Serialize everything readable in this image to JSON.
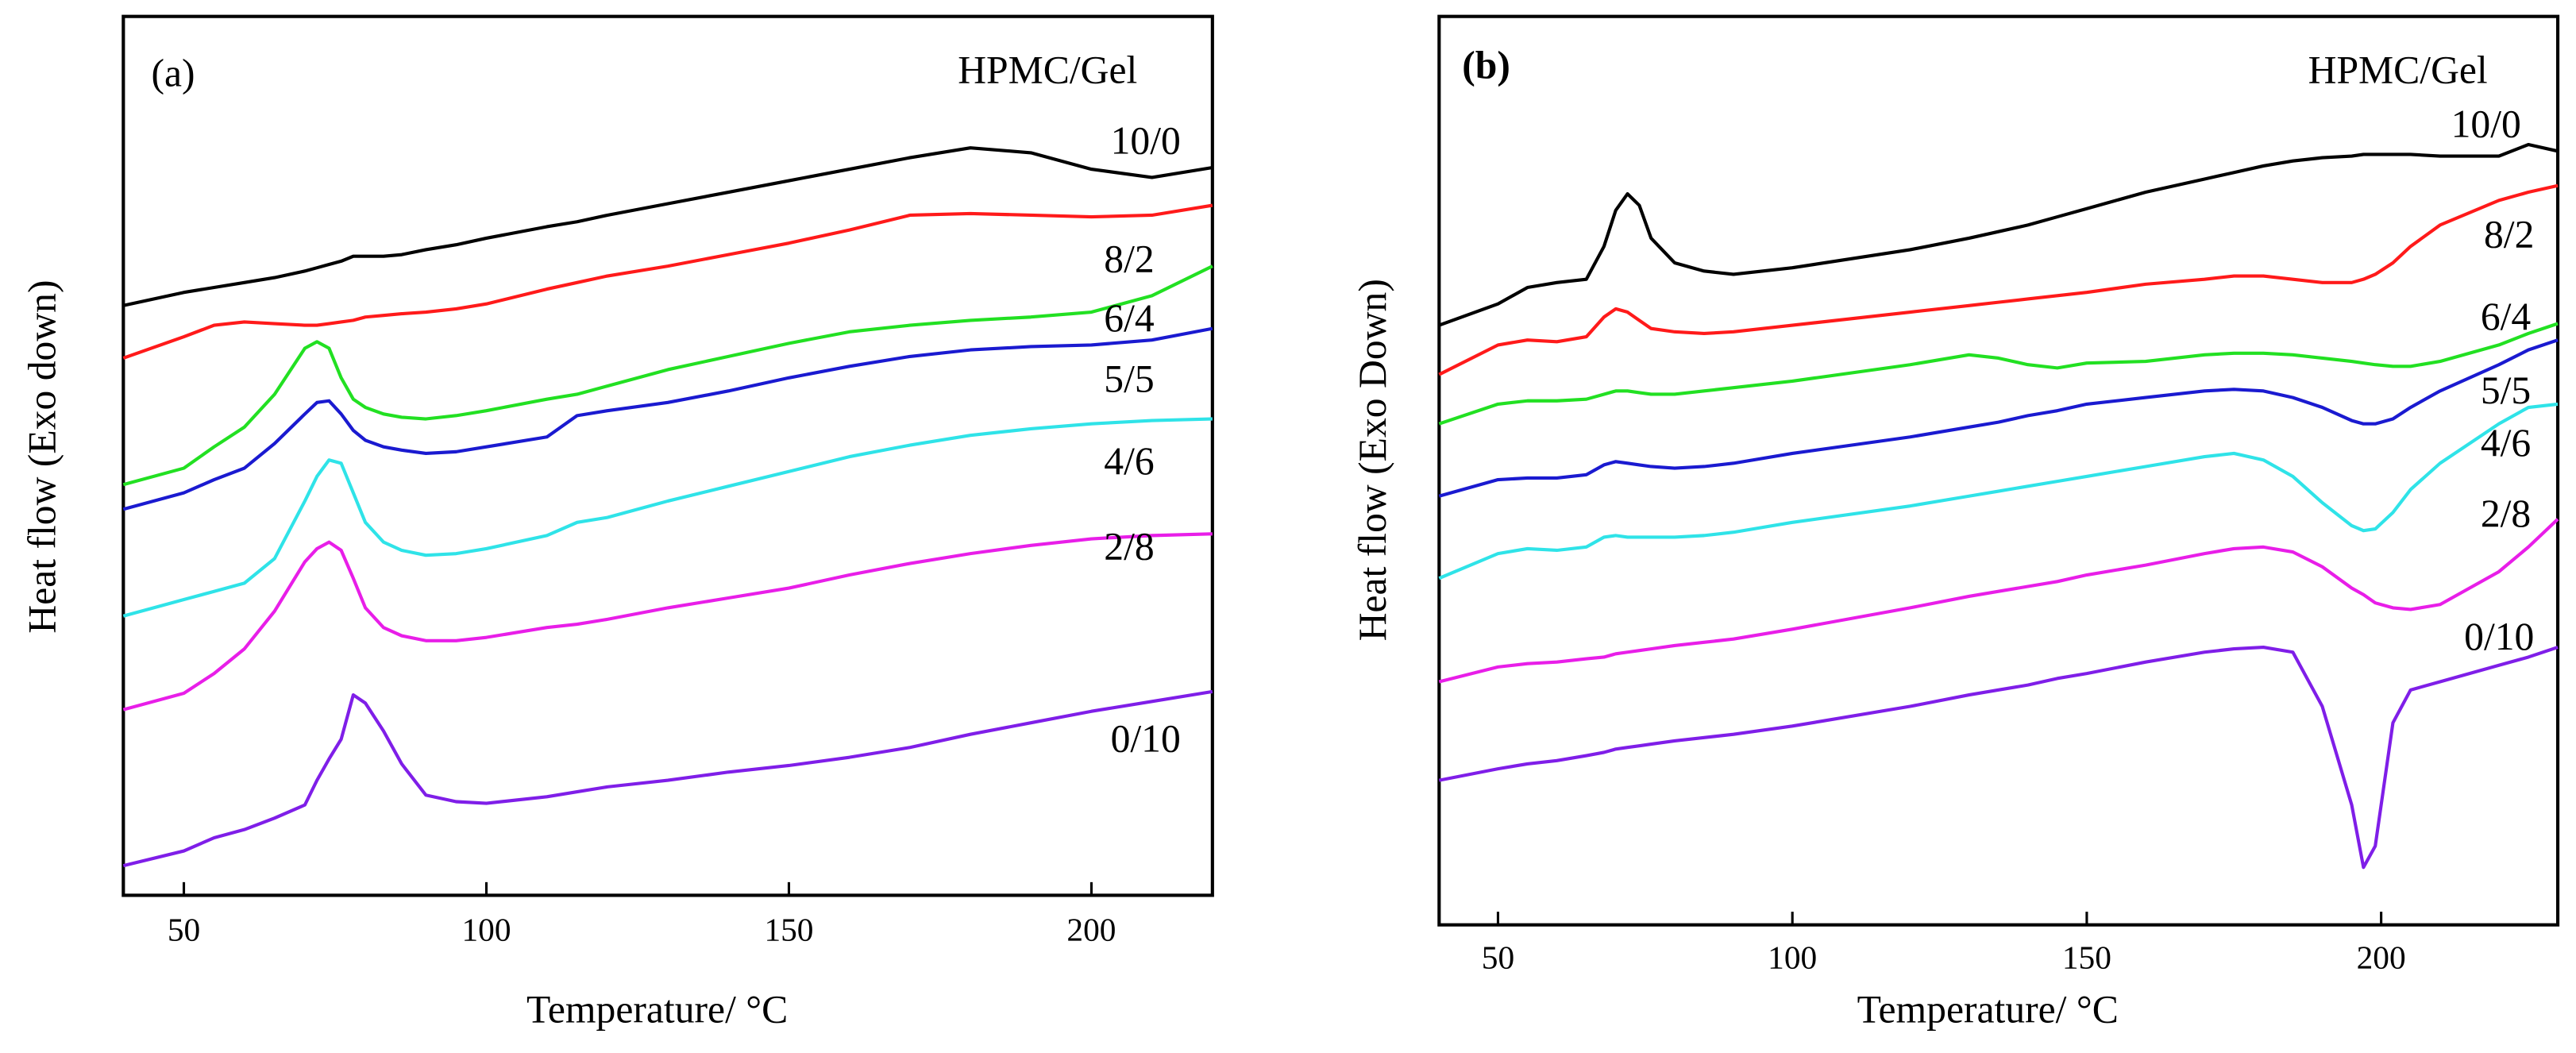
{
  "chart_data": [
    {
      "type": "line",
      "panel_label": "(a)",
      "legend_title": "HPMC/Gel",
      "xlabel": "Temperature/ °C",
      "ylabel": "Heat flow (Exo down)",
      "xlim": [
        40,
        220
      ],
      "xticks": [
        50,
        100,
        150,
        200
      ],
      "ylim": [
        0,
        535
      ],
      "x": [
        40,
        50,
        55,
        60,
        65,
        70,
        72,
        74,
        76,
        78,
        80,
        83,
        86,
        90,
        95,
        100,
        110,
        115,
        120,
        130,
        140,
        150,
        160,
        170,
        180,
        190,
        200,
        210,
        220
      ],
      "series": [
        {
          "name": "10/0",
          "color": "#000000",
          "values": [
            359,
            367,
            370,
            373,
            376,
            380,
            382,
            384,
            386,
            389,
            389,
            389,
            390,
            393,
            396,
            400,
            407,
            410,
            414,
            421,
            428,
            435,
            442,
            449,
            455,
            452,
            442,
            437,
            443
          ]
        },
        {
          "name": "8/2",
          "color": "#ff1a1a",
          "values": [
            327,
            340,
            347,
            349,
            348,
            347,
            347,
            348,
            349,
            350,
            352,
            353,
            354,
            355,
            357,
            360,
            369,
            373,
            377,
            383,
            390,
            397,
            405,
            414,
            415,
            414,
            413,
            414,
            420
          ]
        },
        {
          "name": "6/4",
          "color": "#22e022",
          "values": [
            250,
            260,
            273,
            285,
            305,
            333,
            337,
            333,
            315,
            302,
            297,
            293,
            291,
            290,
            292,
            295,
            302,
            305,
            310,
            320,
            328,
            336,
            343,
            347,
            350,
            352,
            355,
            365,
            383
          ]
        },
        {
          "name": "5/5",
          "color": "#1a1ad0",
          "values": [
            235,
            245,
            253,
            260,
            275,
            293,
            300,
            301,
            293,
            283,
            277,
            273,
            271,
            269,
            270,
            273,
            279,
            292,
            295,
            300,
            307,
            315,
            322,
            328,
            332,
            334,
            335,
            338,
            345
          ]
        },
        {
          "name": "4/6",
          "color": "#2fe3e8",
          "values": [
            170,
            180,
            185,
            190,
            205,
            240,
            255,
            265,
            263,
            245,
            227,
            215,
            210,
            207,
            208,
            211,
            219,
            227,
            230,
            240,
            249,
            258,
            267,
            274,
            280,
            284,
            287,
            289,
            290
          ]
        },
        {
          "name": "2/8",
          "color": "#e81ee8",
          "values": [
            113,
            123,
            135,
            150,
            173,
            203,
            211,
            215,
            210,
            193,
            175,
            163,
            158,
            155,
            155,
            157,
            163,
            165,
            168,
            175,
            181,
            187,
            195,
            202,
            208,
            213,
            217,
            219,
            220
          ]
        },
        {
          "name": "0/10",
          "color": "#7f1ee8",
          "values": [
            18,
            27,
            35,
            40,
            47,
            55,
            70,
            83,
            95,
            122,
            117,
            100,
            80,
            61,
            57,
            56,
            60,
            63,
            66,
            70,
            75,
            79,
            84,
            90,
            98,
            105,
            112,
            118,
            124
          ]
        }
      ]
    },
    {
      "type": "line",
      "panel_label": "(b)",
      "legend_title": "HPMC/Gel",
      "xlabel": "Temperature/ °C",
      "ylabel": "Heat flow (Exo Down)",
      "xlim": [
        40,
        230
      ],
      "xticks": [
        50,
        100,
        150,
        200
      ],
      "ylim": [
        0,
        553
      ],
      "x": [
        40,
        50,
        55,
        60,
        65,
        68,
        70,
        72,
        74,
        76,
        80,
        85,
        90,
        100,
        120,
        130,
        135,
        140,
        145,
        150,
        160,
        170,
        175,
        180,
        185,
        190,
        195,
        197,
        199,
        202,
        205,
        210,
        220,
        225,
        230
      ],
      "series": [
        {
          "name": "10/0",
          "color": "#000000",
          "values": [
            365,
            378,
            388,
            391,
            393,
            413,
            435,
            445,
            438,
            418,
            403,
            398,
            396,
            400,
            411,
            418,
            422,
            426,
            431,
            436,
            446,
            454,
            458,
            462,
            465,
            467,
            468,
            469,
            469,
            469,
            469,
            468,
            468,
            475,
            471
          ]
        },
        {
          "name": "8/2",
          "color": "#ff1a1a",
          "values": [
            335,
            353,
            356,
            355,
            358,
            370,
            375,
            373,
            368,
            363,
            361,
            360,
            361,
            365,
            373,
            377,
            379,
            381,
            383,
            385,
            390,
            393,
            395,
            395,
            393,
            391,
            391,
            393,
            396,
            403,
            413,
            426,
            441,
            446,
            450
          ]
        },
        {
          "name": "6/4",
          "color": "#22e022",
          "values": [
            305,
            317,
            319,
            319,
            320,
            323,
            325,
            325,
            324,
            323,
            323,
            325,
            327,
            331,
            341,
            347,
            345,
            341,
            339,
            342,
            343,
            347,
            348,
            348,
            347,
            345,
            343,
            342,
            341,
            340,
            340,
            343,
            353,
            360,
            366
          ]
        },
        {
          "name": "5/5",
          "color": "#1a1ad0",
          "values": [
            261,
            271,
            272,
            272,
            274,
            280,
            282,
            281,
            280,
            279,
            278,
            279,
            281,
            287,
            297,
            303,
            306,
            310,
            313,
            317,
            321,
            325,
            326,
            325,
            321,
            315,
            307,
            305,
            305,
            308,
            315,
            325,
            341,
            350,
            356
          ]
        },
        {
          "name": "4/6",
          "color": "#2fe3e8",
          "values": [
            211,
            226,
            229,
            228,
            230,
            236,
            237,
            236,
            236,
            236,
            236,
            237,
            239,
            245,
            255,
            261,
            264,
            267,
            270,
            273,
            279,
            285,
            287,
            283,
            273,
            257,
            243,
            240,
            241,
            251,
            265,
            281,
            305,
            315,
            317
          ]
        },
        {
          "name": "2/8",
          "color": "#e81ee8",
          "values": [
            148,
            157,
            159,
            160,
            162,
            163,
            165,
            166,
            167,
            168,
            170,
            172,
            174,
            180,
            193,
            200,
            203,
            206,
            209,
            213,
            219,
            226,
            229,
            230,
            227,
            218,
            205,
            201,
            196,
            193,
            192,
            195,
            215,
            230,
            247
          ]
        },
        {
          "name": "0/10",
          "color": "#7f1ee8",
          "values": [
            88,
            95,
            98,
            100,
            103,
            105,
            107,
            108,
            109,
            110,
            112,
            114,
            116,
            121,
            133,
            140,
            143,
            146,
            150,
            153,
            160,
            166,
            168,
            169,
            166,
            133,
            73,
            35,
            48,
            123,
            143,
            148,
            158,
            163,
            169
          ]
        }
      ]
    }
  ]
}
